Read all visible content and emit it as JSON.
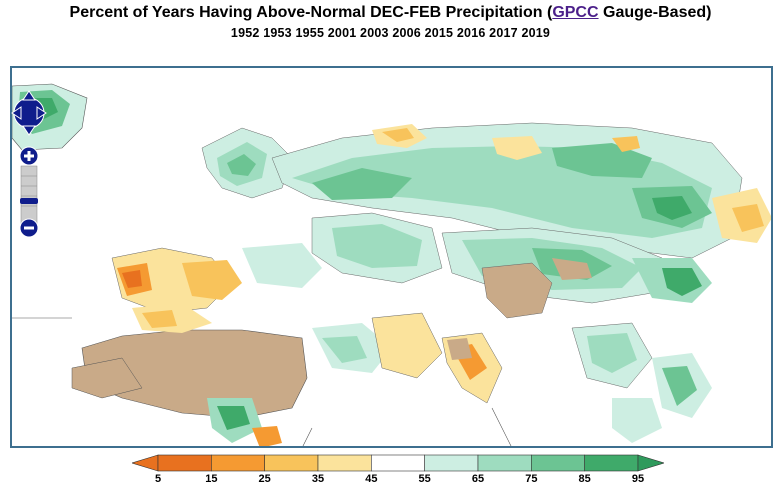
{
  "title": {
    "prefix": "Percent of Years Having Above-Normal DEC-FEB Precipitation (",
    "link": "GPCC",
    "suffix": " Gauge-Based)"
  },
  "subtitle": "1952 1953 1955 2001 2003 2006 2015 2016 2017 2019",
  "colors": {
    "brown": "#c9aa88",
    "green_dark": "#3faa6a",
    "green_mid": "#6cc493",
    "green_light": "#9edcbf",
    "green_pale": "#cdeee2",
    "orange_dark": "#e8711f",
    "orange_mid": "#f59a32",
    "orange_light": "#f8c35b",
    "yellow_pale": "#fbe39c",
    "border": "#3d6f8f",
    "nav_blue": "#0f1d8c"
  },
  "legend": {
    "ticks": [
      "5",
      "15",
      "25",
      "35",
      "45",
      "55",
      "65",
      "75",
      "85",
      "95"
    ],
    "bins": [
      "#e8711f",
      "#f59a32",
      "#f8c35b",
      "#fbe39c",
      "#ffffff",
      "#cdeee2",
      "#9edcbf",
      "#6cc493",
      "#3faa6a"
    ]
  }
}
